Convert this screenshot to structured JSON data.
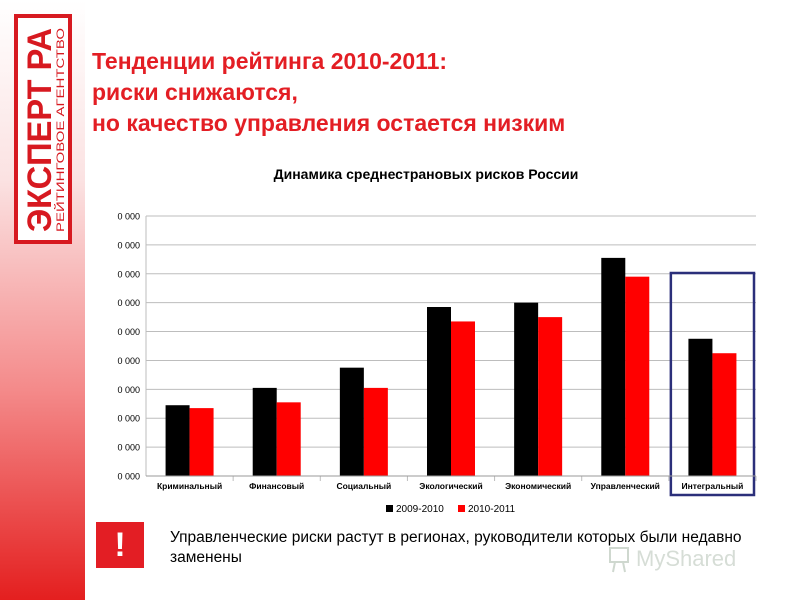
{
  "slide": {
    "title_lines": [
      "Тенденции рейтинга 2010-2011:",
      "риски снижаются,",
      "но качество управления остается низким"
    ],
    "note": "Управленческие риски растут в регионах, руководители которых были недавно заменены",
    "warning_symbol": "!",
    "logo": {
      "top": "ЭКСПЕРТ РА",
      "bottom": "РЕЙТИНГОВОЕ АГЕНТСТВО"
    },
    "watermark": "MyShared",
    "accent_color": "#e31e24"
  },
  "chart_data": {
    "type": "bar",
    "title": "Динамика среднестрановых рисков России",
    "categories": [
      "Криминальный",
      "Финансовый",
      "Социальный",
      "Экологический",
      "Экономический",
      "Управленческий",
      "Интегральный"
    ],
    "series": [
      {
        "name": "2009-2010",
        "color": "#000000",
        "values": [
          0.245,
          0.305,
          0.375,
          0.585,
          0.6,
          0.755,
          0.475
        ]
      },
      {
        "name": "2010-2011",
        "color": "#ff0000",
        "values": [
          0.235,
          0.255,
          0.305,
          0.535,
          0.55,
          0.69,
          0.425
        ]
      }
    ],
    "ylim": [
      0,
      0.9
    ],
    "y_tick_labels": [
      "0 000",
      "0 000",
      "0 000",
      "0 000",
      "0 000",
      "0 000",
      "0 000",
      "0 000",
      "0 000",
      "0 000"
    ],
    "grid": true,
    "legend_position": "bottom",
    "highlighted_category": "Интегральный",
    "highlight_color": "#2b2f7a"
  }
}
